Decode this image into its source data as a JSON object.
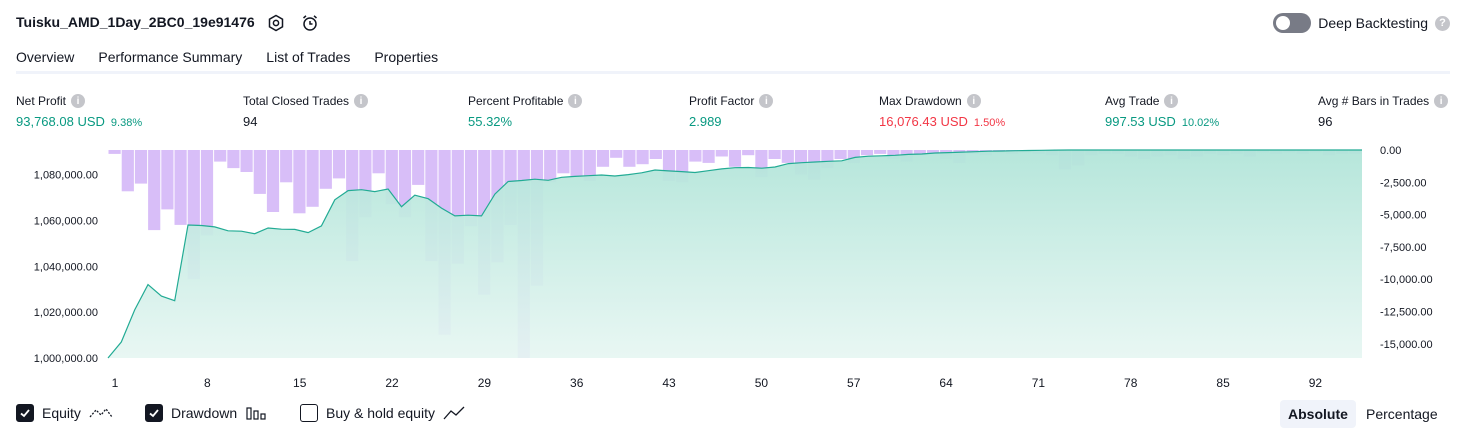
{
  "header": {
    "title": "Tuisku_AMD_1Day_2BC0_19e91476",
    "deep_backtesting_label": "Deep Backtesting"
  },
  "tabs": [
    {
      "label": "Overview",
      "active": true
    },
    {
      "label": "Performance Summary",
      "active": false
    },
    {
      "label": "List of Trades",
      "active": false
    },
    {
      "label": "Properties",
      "active": false
    }
  ],
  "metrics": [
    {
      "label": "Net Profit",
      "value": "93,768.08 USD",
      "sub": "9.38%",
      "tone": "pos"
    },
    {
      "label": "Total Closed Trades",
      "value": "94",
      "sub": "",
      "tone": "neutral"
    },
    {
      "label": "Percent Profitable",
      "value": "55.32%",
      "sub": "",
      "tone": "pos"
    },
    {
      "label": "Profit Factor",
      "value": "2.989",
      "sub": "",
      "tone": "pos"
    },
    {
      "label": "Max Drawdown",
      "value": "16,076.43 USD",
      "sub": "1.50%",
      "tone": "neg"
    },
    {
      "label": "Avg Trade",
      "value": "997.53 USD",
      "sub": "10.02%",
      "tone": "pos"
    },
    {
      "label": "Avg # Bars in Trades",
      "value": "96",
      "sub": "",
      "tone": "neutral"
    }
  ],
  "colors": {
    "positive": "#089981",
    "negative": "#f23645",
    "equity_line": "#22ab94",
    "equity_fill": "#b2e5d9",
    "drawdown_bar": "#d1b3f7"
  },
  "chart_data": {
    "type": "area",
    "x_ticks": [
      "1",
      "8",
      "15",
      "22",
      "29",
      "36",
      "43",
      "50",
      "57",
      "64",
      "71",
      "78",
      "85",
      "92"
    ],
    "left_ticks": [
      "1,080,000.00",
      "1,060,000.00",
      "1,040,000.00",
      "1,020,000.00",
      "1,000,000.00"
    ],
    "right_ticks": [
      "0.00",
      "-2,500.00",
      "-5,000.00",
      "-7,500.00",
      "-10,000.00",
      "-12,500.00",
      "-15,000.00"
    ],
    "left_ylim": [
      1000000,
      1082000
    ],
    "right_ylim": [
      -16100,
      0
    ],
    "x_range": [
      1,
      95
    ],
    "series": [
      {
        "name": "Equity",
        "axis": "left",
        "values": [
          1000000,
          1007000,
          1021000,
          1032000,
          1027000,
          1025000,
          1058000,
          1057800,
          1057200,
          1055500,
          1055300,
          1054200,
          1056700,
          1056200,
          1056100,
          1054700,
          1057600,
          1069000,
          1073000,
          1073400,
          1072600,
          1073700,
          1066000,
          1071000,
          1069500,
          1065400,
          1062000,
          1062300,
          1062000,
          1071500,
          1077000,
          1077400,
          1078000,
          1077500,
          1078800,
          1079200,
          1079500,
          1079800,
          1079400,
          1080000,
          1080800,
          1082000,
          1081600,
          1081300,
          1080900,
          1081700,
          1082500,
          1083000,
          1083100,
          1082800,
          1083300,
          1084800,
          1085200,
          1085500,
          1085800,
          1086000,
          1087500,
          1088000,
          1088200,
          1088400,
          1088800,
          1089000,
          1089400,
          1089600,
          1089800,
          1090000,
          1090200,
          1090300,
          1090400,
          1090500,
          1090600,
          1090700,
          1090800,
          1090900,
          1091000,
          1091100,
          1091200,
          1091300,
          1091300,
          1091400,
          1091500,
          1091600,
          1091700,
          1091800,
          1091900,
          1092000,
          1092100,
          1092300,
          1092500,
          1092700,
          1092900,
          1093100,
          1093300,
          1093500,
          1093768
        ]
      },
      {
        "name": "Drawdown",
        "axis": "right",
        "values": [
          -300,
          -3200,
          -2600,
          -6200,
          -4600,
          -5800,
          -10000,
          -6600,
          -900,
          -1400,
          -1700,
          -3400,
          -4800,
          -2500,
          -4900,
          -4400,
          -3000,
          -2200,
          -8600,
          -5200,
          -1800,
          -4200,
          -5200,
          -2700,
          -8600,
          -14300,
          -8800,
          -5900,
          -11200,
          -8700,
          -5800,
          -16100,
          -10500,
          -2500,
          -1800,
          -2100,
          -2400,
          -1300,
          -600,
          -1300,
          -1100,
          -700,
          -2400,
          -2500,
          -900,
          -1000,
          -500,
          -1300,
          -400,
          -2100,
          -700,
          -1000,
          -1900,
          -2300,
          -1400,
          -700,
          -1000,
          -400,
          -300,
          -700,
          -900,
          -400,
          -300,
          -700,
          -1000,
          -300,
          -400,
          -200,
          -300,
          -200,
          -300,
          -400,
          -1500,
          -1200,
          -400,
          -300,
          -300,
          -500,
          -700,
          -500,
          -400,
          -700,
          -500,
          -300,
          -400,
          -300,
          -500,
          -200,
          -300,
          -200,
          -300,
          -200,
          -400,
          -300,
          -300
        ]
      }
    ]
  },
  "legend": [
    {
      "label": "Equity",
      "checked": true,
      "icon": "equity-line-icon"
    },
    {
      "label": "Drawdown",
      "checked": true,
      "icon": "drawdown-bars-icon"
    },
    {
      "label": "Buy & hold equity",
      "checked": false,
      "icon": "trend-line-icon"
    }
  ],
  "scale_toggle": {
    "absolute_label": "Absolute",
    "percentage_label": "Percentage",
    "active": "Absolute"
  }
}
